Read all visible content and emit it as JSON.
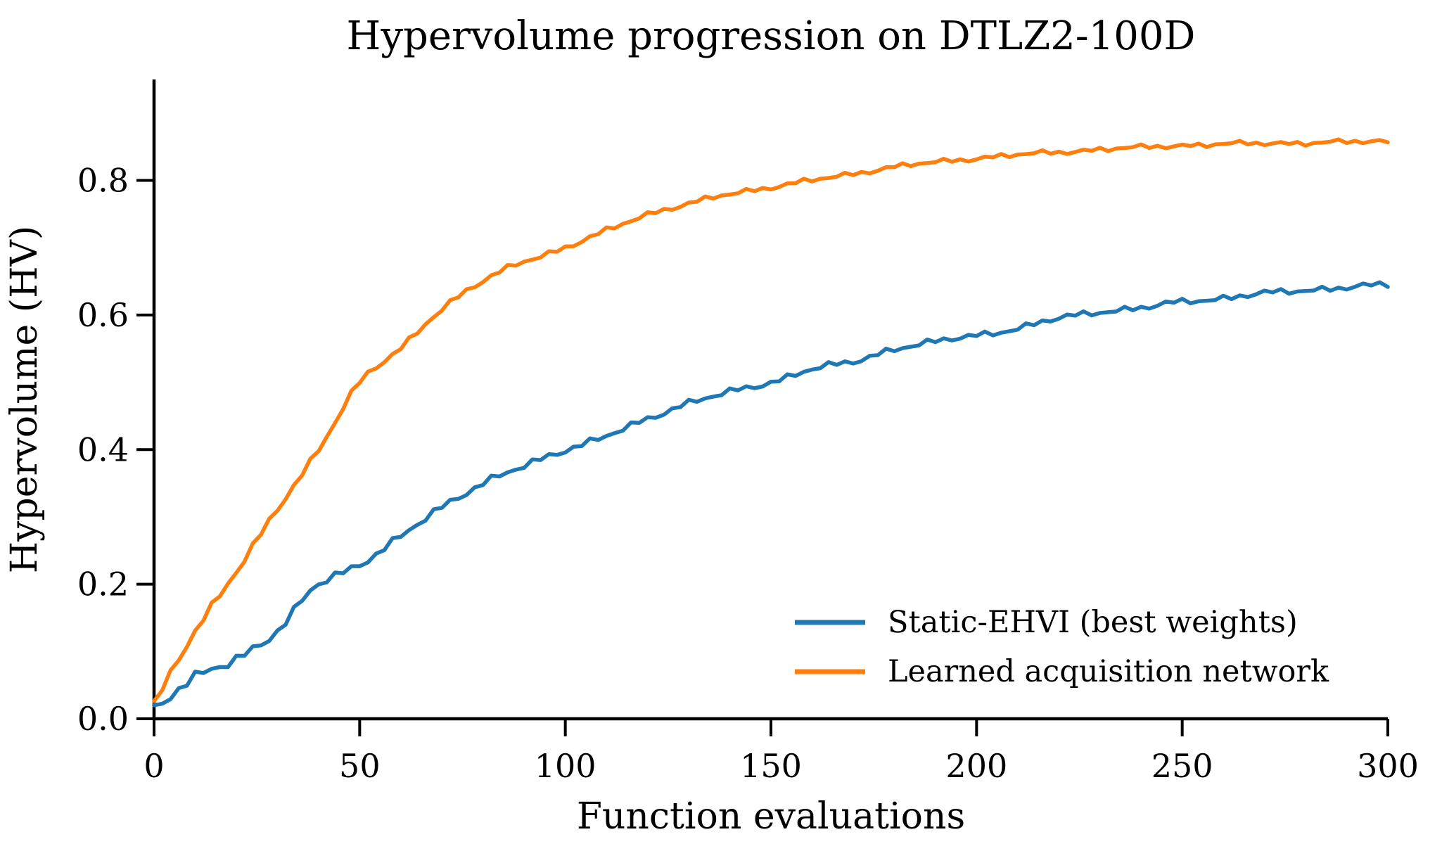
{
  "chart_data": {
    "type": "line",
    "title": "Hypervolume progression on DTLZ2-100D",
    "xlabel": "Function evaluations",
    "ylabel": "Hypervolume (HV)",
    "xlim": [
      0,
      300
    ],
    "ylim": [
      0,
      0.95
    ],
    "grid": false,
    "background": "#ffffff",
    "axis_color": "#000000",
    "legend_position": "lower right",
    "legend_frame": false,
    "xticks": {
      "values": [
        0,
        50,
        100,
        150,
        200,
        250,
        300
      ],
      "labels": [
        "0",
        "50",
        "100",
        "150",
        "200",
        "250",
        "300"
      ]
    },
    "yticks": {
      "values": [
        0.0,
        0.2,
        0.4,
        0.6,
        0.8
      ],
      "labels": [
        "0.0",
        "0.2",
        "0.4",
        "0.6",
        "0.8"
      ]
    },
    "x_anchor_step": 10,
    "series": [
      {
        "name": "Static-EHVI (best weights)",
        "color": "#1f77b4",
        "x": [
          0,
          10,
          20,
          30,
          40,
          50,
          60,
          70,
          80,
          90,
          100,
          110,
          120,
          130,
          140,
          150,
          160,
          170,
          180,
          190,
          200,
          210,
          220,
          230,
          240,
          250,
          260,
          270,
          280,
          290,
          300
        ],
        "y": [
          0.015,
          0.06,
          0.09,
          0.13,
          0.2,
          0.23,
          0.27,
          0.315,
          0.35,
          0.375,
          0.4,
          0.42,
          0.445,
          0.47,
          0.485,
          0.5,
          0.52,
          0.53,
          0.55,
          0.56,
          0.57,
          0.58,
          0.595,
          0.605,
          0.61,
          0.62,
          0.625,
          0.632,
          0.637,
          0.641,
          0.645
        ],
        "noise": {
          "amplitude": 0.005,
          "freqs": [
            1.31,
            0.53,
            2.9
          ],
          "weights": [
            0.6,
            0.4,
            0.25
          ],
          "phases": [
            0.7,
            2.1,
            4.0
          ]
        }
      },
      {
        "name": "Learned acquisition network",
        "color": "#ff7f0e",
        "x": [
          0,
          10,
          20,
          30,
          40,
          50,
          60,
          70,
          80,
          90,
          100,
          110,
          120,
          130,
          140,
          150,
          160,
          170,
          180,
          190,
          200,
          210,
          220,
          230,
          240,
          250,
          260,
          270,
          280,
          290,
          300
        ],
        "y": [
          0.02,
          0.13,
          0.22,
          0.31,
          0.4,
          0.5,
          0.55,
          0.61,
          0.65,
          0.68,
          0.7,
          0.725,
          0.75,
          0.765,
          0.78,
          0.79,
          0.8,
          0.81,
          0.82,
          0.827,
          0.833,
          0.838,
          0.842,
          0.846,
          0.849,
          0.852,
          0.854,
          0.855,
          0.856,
          0.857,
          0.858
        ],
        "noise": {
          "amplitude": 0.004,
          "freqs": [
            1.31,
            0.53,
            2.9
          ],
          "weights": [
            0.6,
            0.4,
            0.25
          ],
          "phases": [
            1.9,
            0.3,
            2.6
          ]
        }
      }
    ],
    "noise_early_boost": {
      "factor": 0.9,
      "decay": 45
    },
    "line_width": 5.5
  }
}
